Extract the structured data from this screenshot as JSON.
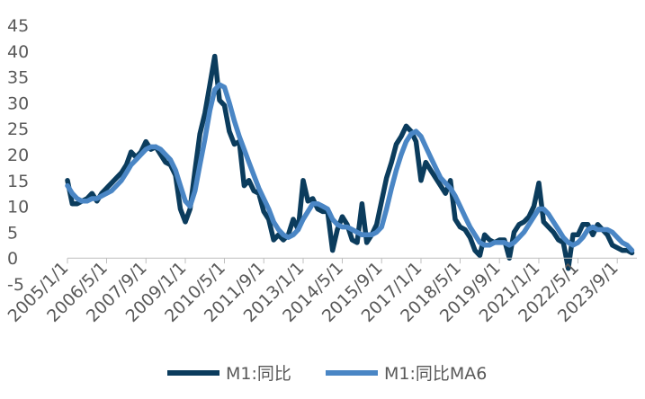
{
  "chart_data": {
    "type": "line",
    "title": "",
    "xlabel": "",
    "ylabel": "",
    "ylim": [
      -5,
      45
    ],
    "y_ticks": [
      -5,
      0,
      5,
      10,
      15,
      20,
      25,
      30,
      35,
      40,
      45
    ],
    "x_tick_labels": [
      "2005/1/1",
      "2006/5/1",
      "2007/9/1",
      "2009/1/1",
      "2010/5/1",
      "2011/9/1",
      "2013/1/1",
      "2014/5/1",
      "2015/9/1",
      "2017/1/1",
      "2018/5/1",
      "2019/9/1",
      "2021/1/1",
      "2022/5/1",
      "2023/9/1"
    ],
    "x_range": [
      "2005/1/1",
      "2024/5/1"
    ],
    "grid": false,
    "legend_position": "bottom",
    "series": [
      {
        "name": "M1:同比",
        "color": "#0b3c5d",
        "points": [
          [
            "2005/1/1",
            15.0
          ],
          [
            "2005/3/1",
            10.5
          ],
          [
            "2005/5/1",
            10.5
          ],
          [
            "2005/7/1",
            11.0
          ],
          [
            "2005/9/1",
            11.5
          ],
          [
            "2005/11/1",
            12.5
          ],
          [
            "2006/1/1",
            11.0
          ],
          [
            "2006/3/1",
            12.5
          ],
          [
            "2006/5/1",
            13.5
          ],
          [
            "2006/7/1",
            14.5
          ],
          [
            "2006/9/1",
            15.5
          ],
          [
            "2006/11/1",
            16.5
          ],
          [
            "2007/1/1",
            18.0
          ],
          [
            "2007/3/1",
            20.5
          ],
          [
            "2007/5/1",
            19.5
          ],
          [
            "2007/7/1",
            20.5
          ],
          [
            "2007/9/1",
            22.5
          ],
          [
            "2007/11/1",
            21.0
          ],
          [
            "2008/1/1",
            21.5
          ],
          [
            "2008/3/1",
            20.0
          ],
          [
            "2008/5/1",
            18.5
          ],
          [
            "2008/7/1",
            18.0
          ],
          [
            "2008/9/1",
            16.0
          ],
          [
            "2008/11/1",
            9.5
          ],
          [
            "2009/1/1",
            7.0
          ],
          [
            "2009/3/1",
            9.5
          ],
          [
            "2009/5/1",
            17.0
          ],
          [
            "2009/7/1",
            24.0
          ],
          [
            "2009/9/1",
            28.0
          ],
          [
            "2009/11/1",
            33.5
          ],
          [
            "2010/1/1",
            39.0
          ],
          [
            "2010/3/1",
            30.5
          ],
          [
            "2010/5/1",
            29.5
          ],
          [
            "2010/7/1",
            24.5
          ],
          [
            "2010/9/1",
            22.0
          ],
          [
            "2010/11/1",
            22.5
          ],
          [
            "2011/1/1",
            14.0
          ],
          [
            "2011/3/1",
            15.0
          ],
          [
            "2011/5/1",
            13.0
          ],
          [
            "2011/7/1",
            12.5
          ],
          [
            "2011/9/1",
            9.0
          ],
          [
            "2011/11/1",
            7.5
          ],
          [
            "2012/1/1",
            3.5
          ],
          [
            "2012/3/1",
            4.5
          ],
          [
            "2012/5/1",
            3.5
          ],
          [
            "2012/7/1",
            4.5
          ],
          [
            "2012/9/1",
            7.5
          ],
          [
            "2012/11/1",
            5.5
          ],
          [
            "2013/1/1",
            15.0
          ],
          [
            "2013/3/1",
            11.0
          ],
          [
            "2013/5/1",
            11.5
          ],
          [
            "2013/7/1",
            9.5
          ],
          [
            "2013/9/1",
            9.0
          ],
          [
            "2013/11/1",
            9.0
          ],
          [
            "2014/1/1",
            1.5
          ],
          [
            "2014/3/1",
            5.5
          ],
          [
            "2014/5/1",
            8.0
          ],
          [
            "2014/7/1",
            6.5
          ],
          [
            "2014/9/1",
            3.5
          ],
          [
            "2014/11/1",
            3.0
          ],
          [
            "2015/1/1",
            10.5
          ],
          [
            "2015/3/1",
            3.0
          ],
          [
            "2015/5/1",
            4.5
          ],
          [
            "2015/7/1",
            6.5
          ],
          [
            "2015/9/1",
            11.0
          ],
          [
            "2015/11/1",
            15.5
          ],
          [
            "2016/1/1",
            18.5
          ],
          [
            "2016/3/1",
            22.0
          ],
          [
            "2016/5/1",
            23.5
          ],
          [
            "2016/7/1",
            25.5
          ],
          [
            "2016/9/1",
            24.5
          ],
          [
            "2016/11/1",
            22.5
          ],
          [
            "2017/1/1",
            15.0
          ],
          [
            "2017/3/1",
            18.5
          ],
          [
            "2017/5/1",
            17.0
          ],
          [
            "2017/7/1",
            15.5
          ],
          [
            "2017/9/1",
            14.0
          ],
          [
            "2017/11/1",
            12.5
          ],
          [
            "2018/1/1",
            15.0
          ],
          [
            "2018/3/1",
            7.5
          ],
          [
            "2018/5/1",
            6.0
          ],
          [
            "2018/7/1",
            5.5
          ],
          [
            "2018/9/1",
            4.0
          ],
          [
            "2018/11/1",
            1.5
          ],
          [
            "2019/1/1",
            0.5
          ],
          [
            "2019/3/1",
            4.5
          ],
          [
            "2019/5/1",
            3.5
          ],
          [
            "2019/7/1",
            3.0
          ],
          [
            "2019/9/1",
            3.5
          ],
          [
            "2019/11/1",
            3.5
          ],
          [
            "2020/1/1",
            0.0
          ],
          [
            "2020/3/1",
            5.0
          ],
          [
            "2020/5/1",
            6.5
          ],
          [
            "2020/7/1",
            7.0
          ],
          [
            "2020/9/1",
            8.0
          ],
          [
            "2020/11/1",
            10.0
          ],
          [
            "2021/1/1",
            14.5
          ],
          [
            "2021/3/1",
            7.0
          ],
          [
            "2021/5/1",
            6.0
          ],
          [
            "2021/7/1",
            5.0
          ],
          [
            "2021/9/1",
            3.5
          ],
          [
            "2021/11/1",
            3.0
          ],
          [
            "2022/1/1",
            -2.0
          ],
          [
            "2022/3/1",
            4.5
          ],
          [
            "2022/5/1",
            4.5
          ],
          [
            "2022/7/1",
            6.5
          ],
          [
            "2022/9/1",
            6.5
          ],
          [
            "2022/11/1",
            4.5
          ],
          [
            "2023/1/1",
            6.5
          ],
          [
            "2023/3/1",
            5.5
          ],
          [
            "2023/5/1",
            4.5
          ],
          [
            "2023/7/1",
            2.5
          ],
          [
            "2023/9/1",
            2.0
          ],
          [
            "2023/11/1",
            1.5
          ],
          [
            "2024/1/1",
            1.5
          ],
          [
            "2024/3/1",
            1.0
          ]
        ]
      },
      {
        "name": "M1:同比MA6",
        "color": "#4a86c5",
        "points": [
          [
            "2005/1/1",
            14.0
          ],
          [
            "2005/3/1",
            12.5
          ],
          [
            "2005/5/1",
            11.5
          ],
          [
            "2005/7/1",
            11.0
          ],
          [
            "2005/9/1",
            11.0
          ],
          [
            "2005/11/1",
            11.5
          ],
          [
            "2006/1/1",
            11.5
          ],
          [
            "2006/3/1",
            12.0
          ],
          [
            "2006/5/1",
            12.5
          ],
          [
            "2006/7/1",
            13.0
          ],
          [
            "2006/9/1",
            14.0
          ],
          [
            "2006/11/1",
            15.0
          ],
          [
            "2007/1/1",
            16.5
          ],
          [
            "2007/3/1",
            18.0
          ],
          [
            "2007/5/1",
            19.0
          ],
          [
            "2007/7/1",
            20.0
          ],
          [
            "2007/9/1",
            21.0
          ],
          [
            "2007/11/1",
            21.5
          ],
          [
            "2008/1/1",
            21.5
          ],
          [
            "2008/3/1",
            21.0
          ],
          [
            "2008/5/1",
            20.0
          ],
          [
            "2008/7/1",
            19.0
          ],
          [
            "2008/9/1",
            17.0
          ],
          [
            "2008/11/1",
            14.0
          ],
          [
            "2009/1/1",
            11.0
          ],
          [
            "2009/3/1",
            10.0
          ],
          [
            "2009/5/1",
            13.0
          ],
          [
            "2009/7/1",
            18.0
          ],
          [
            "2009/9/1",
            23.0
          ],
          [
            "2009/11/1",
            28.5
          ],
          [
            "2010/1/1",
            32.5
          ],
          [
            "2010/3/1",
            33.5
          ],
          [
            "2010/5/1",
            33.0
          ],
          [
            "2010/7/1",
            30.0
          ],
          [
            "2010/9/1",
            26.5
          ],
          [
            "2010/11/1",
            23.5
          ],
          [
            "2011/1/1",
            21.0
          ],
          [
            "2011/3/1",
            18.5
          ],
          [
            "2011/5/1",
            16.0
          ],
          [
            "2011/7/1",
            13.5
          ],
          [
            "2011/9/1",
            11.5
          ],
          [
            "2011/11/1",
            9.5
          ],
          [
            "2012/1/1",
            7.0
          ],
          [
            "2012/3/1",
            5.5
          ],
          [
            "2012/5/1",
            4.5
          ],
          [
            "2012/7/1",
            4.0
          ],
          [
            "2012/9/1",
            4.5
          ],
          [
            "2012/11/1",
            5.5
          ],
          [
            "2013/1/1",
            7.5
          ],
          [
            "2013/3/1",
            9.0
          ],
          [
            "2013/5/1",
            10.5
          ],
          [
            "2013/7/1",
            10.5
          ],
          [
            "2013/9/1",
            10.0
          ],
          [
            "2013/11/1",
            9.5
          ],
          [
            "2014/1/1",
            7.5
          ],
          [
            "2014/3/1",
            6.5
          ],
          [
            "2014/5/1",
            6.0
          ],
          [
            "2014/7/1",
            6.0
          ],
          [
            "2014/9/1",
            5.5
          ],
          [
            "2014/11/1",
            5.0
          ],
          [
            "2015/1/1",
            4.5
          ],
          [
            "2015/3/1",
            4.5
          ],
          [
            "2015/5/1",
            4.5
          ],
          [
            "2015/7/1",
            5.0
          ],
          [
            "2015/9/1",
            6.0
          ],
          [
            "2015/11/1",
            9.5
          ],
          [
            "2016/1/1",
            13.5
          ],
          [
            "2016/3/1",
            17.0
          ],
          [
            "2016/5/1",
            20.0
          ],
          [
            "2016/7/1",
            22.5
          ],
          [
            "2016/9/1",
            24.0
          ],
          [
            "2016/11/1",
            24.5
          ],
          [
            "2017/1/1",
            23.5
          ],
          [
            "2017/3/1",
            21.5
          ],
          [
            "2017/5/1",
            19.5
          ],
          [
            "2017/7/1",
            17.5
          ],
          [
            "2017/9/1",
            15.5
          ],
          [
            "2017/11/1",
            14.5
          ],
          [
            "2018/1/1",
            13.5
          ],
          [
            "2018/3/1",
            12.0
          ],
          [
            "2018/5/1",
            10.0
          ],
          [
            "2018/7/1",
            8.0
          ],
          [
            "2018/9/1",
            6.0
          ],
          [
            "2018/11/1",
            4.5
          ],
          [
            "2019/1/1",
            3.0
          ],
          [
            "2019/3/1",
            2.5
          ],
          [
            "2019/5/1",
            2.5
          ],
          [
            "2019/7/1",
            3.0
          ],
          [
            "2019/9/1",
            3.0
          ],
          [
            "2019/11/1",
            3.0
          ],
          [
            "2020/1/1",
            2.5
          ],
          [
            "2020/3/1",
            3.0
          ],
          [
            "2020/5/1",
            4.0
          ],
          [
            "2020/7/1",
            5.0
          ],
          [
            "2020/9/1",
            6.5
          ],
          [
            "2020/11/1",
            8.0
          ],
          [
            "2021/1/1",
            9.5
          ],
          [
            "2021/3/1",
            9.5
          ],
          [
            "2021/5/1",
            8.5
          ],
          [
            "2021/7/1",
            7.0
          ],
          [
            "2021/9/1",
            5.5
          ],
          [
            "2021/11/1",
            4.0
          ],
          [
            "2022/1/1",
            3.0
          ],
          [
            "2022/3/1",
            2.5
          ],
          [
            "2022/5/1",
            3.0
          ],
          [
            "2022/7/1",
            4.0
          ],
          [
            "2022/9/1",
            5.5
          ],
          [
            "2022/11/1",
            6.0
          ],
          [
            "2023/1/1",
            5.5
          ],
          [
            "2023/3/1",
            5.5
          ],
          [
            "2023/5/1",
            5.5
          ],
          [
            "2023/7/1",
            5.0
          ],
          [
            "2023/9/1",
            4.0
          ],
          [
            "2023/11/1",
            3.0
          ],
          [
            "2024/1/1",
            2.5
          ],
          [
            "2024/3/1",
            1.5
          ]
        ]
      }
    ]
  }
}
